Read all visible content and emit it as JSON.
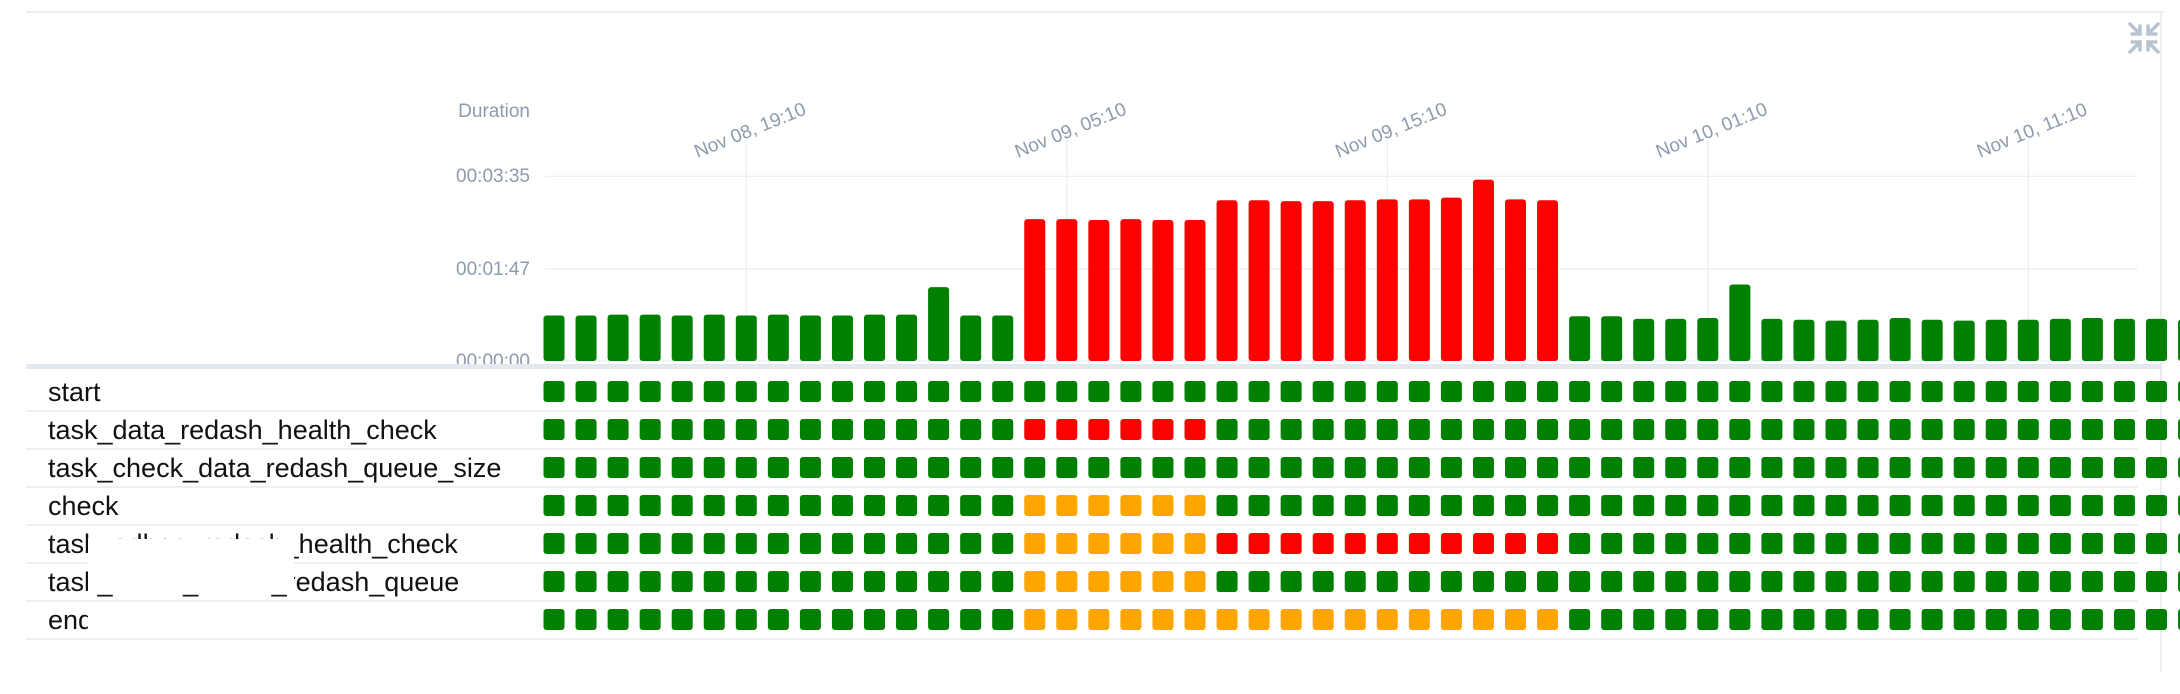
{
  "chart_data": {
    "type": "bar",
    "ylabel": "Duration",
    "y_ticks": [
      "00:00:00",
      "00:01:47",
      "00:03:35"
    ],
    "ylim_seconds": [
      0,
      235
    ],
    "x_ticks": [
      "Nov 08, 19:10",
      "Nov 09, 05:10",
      "Nov 09, 15:10",
      "Nov 10, 01:10",
      "Nov 10, 11:10"
    ],
    "durations_seconds": [
      53,
      53,
      54,
      54,
      53,
      54,
      53,
      54,
      53,
      53,
      54,
      54,
      86,
      53,
      53,
      165,
      165,
      164,
      165,
      164,
      164,
      187,
      187,
      186,
      186,
      187,
      188,
      188,
      190,
      211,
      188,
      187,
      52,
      52,
      49,
      49,
      50,
      89,
      49,
      48,
      47,
      48,
      50,
      48,
      47,
      48,
      48,
      49,
      50,
      49,
      49,
      48,
      47
    ],
    "run_status": [
      "success",
      "success",
      "success",
      "success",
      "success",
      "success",
      "success",
      "success",
      "success",
      "success",
      "success",
      "success",
      "success",
      "success",
      "success",
      "failed",
      "failed",
      "failed",
      "failed",
      "failed",
      "failed",
      "failed",
      "failed",
      "failed",
      "failed",
      "failed",
      "failed",
      "failed",
      "failed",
      "failed",
      "failed",
      "failed",
      "success",
      "success",
      "success",
      "success",
      "success",
      "success",
      "success",
      "success",
      "success",
      "success",
      "success",
      "success",
      "success",
      "success",
      "success",
      "success",
      "success",
      "success",
      "success",
      "success",
      "success"
    ],
    "colors": {
      "success": "#008000",
      "failed": "#ff0000",
      "upstream_failed": "#ffa500"
    },
    "tasks": [
      {
        "name": "start",
        "segments": [
          [
            "success",
            53
          ]
        ]
      },
      {
        "name": "task_data_redash_health_check",
        "segments": [
          [
            "success",
            15
          ],
          [
            "failed",
            6
          ],
          [
            "success",
            32
          ]
        ]
      },
      {
        "name": "task_check_data_redash_queue_size",
        "segments": [
          [
            "success",
            53
          ]
        ]
      },
      {
        "name": "check",
        "segments": [
          [
            "success",
            15
          ],
          [
            "upstream_failed",
            6
          ],
          [
            "success",
            32
          ]
        ]
      },
      {
        "name": "task_adhoc_redash_health_check",
        "segments": [
          [
            "success",
            15
          ],
          [
            "upstream_failed",
            6
          ],
          [
            "failed",
            11
          ],
          [
            "success",
            21
          ]
        ]
      },
      {
        "name": "task_check_adhoc_redash_queue",
        "segments": [
          [
            "success",
            15
          ],
          [
            "upstream_failed",
            6
          ],
          [
            "success",
            32
          ]
        ]
      },
      {
        "name": "end",
        "segments": [
          [
            "success",
            15
          ],
          [
            "upstream_failed",
            17
          ],
          [
            "success",
            21
          ]
        ]
      }
    ]
  }
}
